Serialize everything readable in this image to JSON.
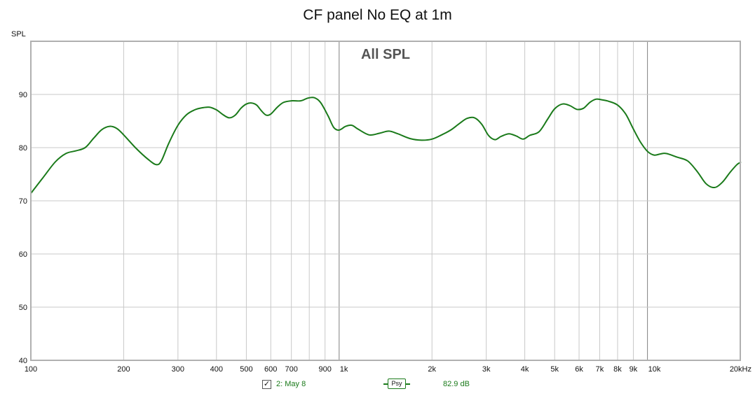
{
  "chart_data": {
    "type": "line",
    "title": "CF panel No EQ at 1m",
    "annotation": "All SPL",
    "ylabel": "SPL",
    "xlabel": "",
    "x_scale": "log",
    "xlim": [
      100,
      20000
    ],
    "ylim": [
      40,
      100
    ],
    "y_ticks": [
      40,
      50,
      60,
      70,
      80,
      90
    ],
    "x_ticks": [
      {
        "value": 100,
        "label": "100"
      },
      {
        "value": 200,
        "label": "200"
      },
      {
        "value": 300,
        "label": "300"
      },
      {
        "value": 400,
        "label": "400"
      },
      {
        "value": 500,
        "label": "500"
      },
      {
        "value": 600,
        "label": "600"
      },
      {
        "value": 700,
        "label": "700"
      },
      {
        "value": 900,
        "label": "900"
      },
      {
        "value": 1000,
        "label": "1k"
      },
      {
        "value": 2000,
        "label": "2k"
      },
      {
        "value": 3000,
        "label": "3k"
      },
      {
        "value": 4000,
        "label": "4k"
      },
      {
        "value": 5000,
        "label": "5k"
      },
      {
        "value": 6000,
        "label": "6k"
      },
      {
        "value": 7000,
        "label": "7k"
      },
      {
        "value": 8000,
        "label": "8k"
      },
      {
        "value": 9000,
        "label": "9k"
      },
      {
        "value": 10000,
        "label": "10k"
      },
      {
        "value": 20000,
        "label": "20kHz"
      }
    ],
    "grid_x": [
      100,
      200,
      300,
      400,
      500,
      600,
      700,
      800,
      900,
      1000,
      2000,
      3000,
      4000,
      5000,
      6000,
      7000,
      8000,
      9000,
      10000,
      20000
    ],
    "grid": true,
    "series": [
      {
        "name": "2: May 8",
        "color": "#1a7a1a",
        "points": [
          [
            100,
            71.4
          ],
          [
            110,
            74.5
          ],
          [
            120,
            77.3
          ],
          [
            130,
            78.9
          ],
          [
            140,
            79.4
          ],
          [
            150,
            80.0
          ],
          [
            160,
            81.8
          ],
          [
            170,
            83.4
          ],
          [
            180,
            84.0
          ],
          [
            190,
            83.6
          ],
          [
            200,
            82.4
          ],
          [
            220,
            79.8
          ],
          [
            240,
            77.8
          ],
          [
            255,
            76.8
          ],
          [
            265,
            77.5
          ],
          [
            280,
            80.8
          ],
          [
            300,
            84.2
          ],
          [
            320,
            86.2
          ],
          [
            340,
            87.1
          ],
          [
            360,
            87.5
          ],
          [
            380,
            87.6
          ],
          [
            400,
            87.1
          ],
          [
            420,
            86.2
          ],
          [
            440,
            85.6
          ],
          [
            460,
            86.1
          ],
          [
            480,
            87.4
          ],
          [
            500,
            88.2
          ],
          [
            520,
            88.4
          ],
          [
            540,
            88.0
          ],
          [
            560,
            86.9
          ],
          [
            580,
            86.1
          ],
          [
            600,
            86.3
          ],
          [
            630,
            87.6
          ],
          [
            660,
            88.5
          ],
          [
            700,
            88.8
          ],
          [
            750,
            88.8
          ],
          [
            790,
            89.3
          ],
          [
            830,
            89.4
          ],
          [
            870,
            88.5
          ],
          [
            920,
            86.0
          ],
          [
            960,
            83.8
          ],
          [
            1000,
            83.3
          ],
          [
            1050,
            84.0
          ],
          [
            1100,
            84.2
          ],
          [
            1150,
            83.5
          ],
          [
            1250,
            82.4
          ],
          [
            1350,
            82.7
          ],
          [
            1450,
            83.1
          ],
          [
            1550,
            82.6
          ],
          [
            1700,
            81.7
          ],
          [
            1850,
            81.4
          ],
          [
            2000,
            81.6
          ],
          [
            2150,
            82.4
          ],
          [
            2300,
            83.3
          ],
          [
            2450,
            84.5
          ],
          [
            2600,
            85.5
          ],
          [
            2750,
            85.6
          ],
          [
            2900,
            84.4
          ],
          [
            3050,
            82.3
          ],
          [
            3200,
            81.5
          ],
          [
            3350,
            82.1
          ],
          [
            3550,
            82.6
          ],
          [
            3750,
            82.2
          ],
          [
            3950,
            81.6
          ],
          [
            4150,
            82.3
          ],
          [
            4450,
            83.0
          ],
          [
            4750,
            85.4
          ],
          [
            5000,
            87.3
          ],
          [
            5300,
            88.2
          ],
          [
            5600,
            87.9
          ],
          [
            5900,
            87.2
          ],
          [
            6200,
            87.4
          ],
          [
            6500,
            88.5
          ],
          [
            6800,
            89.1
          ],
          [
            7100,
            89.0
          ],
          [
            7500,
            88.7
          ],
          [
            8000,
            88.0
          ],
          [
            8500,
            86.3
          ],
          [
            9000,
            83.5
          ],
          [
            9500,
            81.0
          ],
          [
            10000,
            79.3
          ],
          [
            10500,
            78.6
          ],
          [
            11000,
            78.8
          ],
          [
            11500,
            78.9
          ],
          [
            12500,
            78.2
          ],
          [
            13500,
            77.5
          ],
          [
            14500,
            75.5
          ],
          [
            15500,
            73.2
          ],
          [
            16500,
            72.5
          ],
          [
            17500,
            73.5
          ],
          [
            18500,
            75.3
          ],
          [
            19500,
            76.8
          ],
          [
            20500,
            77.2
          ],
          [
            21500,
            77.2
          ],
          [
            22000,
            77.2
          ]
        ]
      }
    ],
    "legend": {
      "check": "✓",
      "name": "2: May 8",
      "psy": "Psy",
      "value": "82.9 dB"
    }
  }
}
